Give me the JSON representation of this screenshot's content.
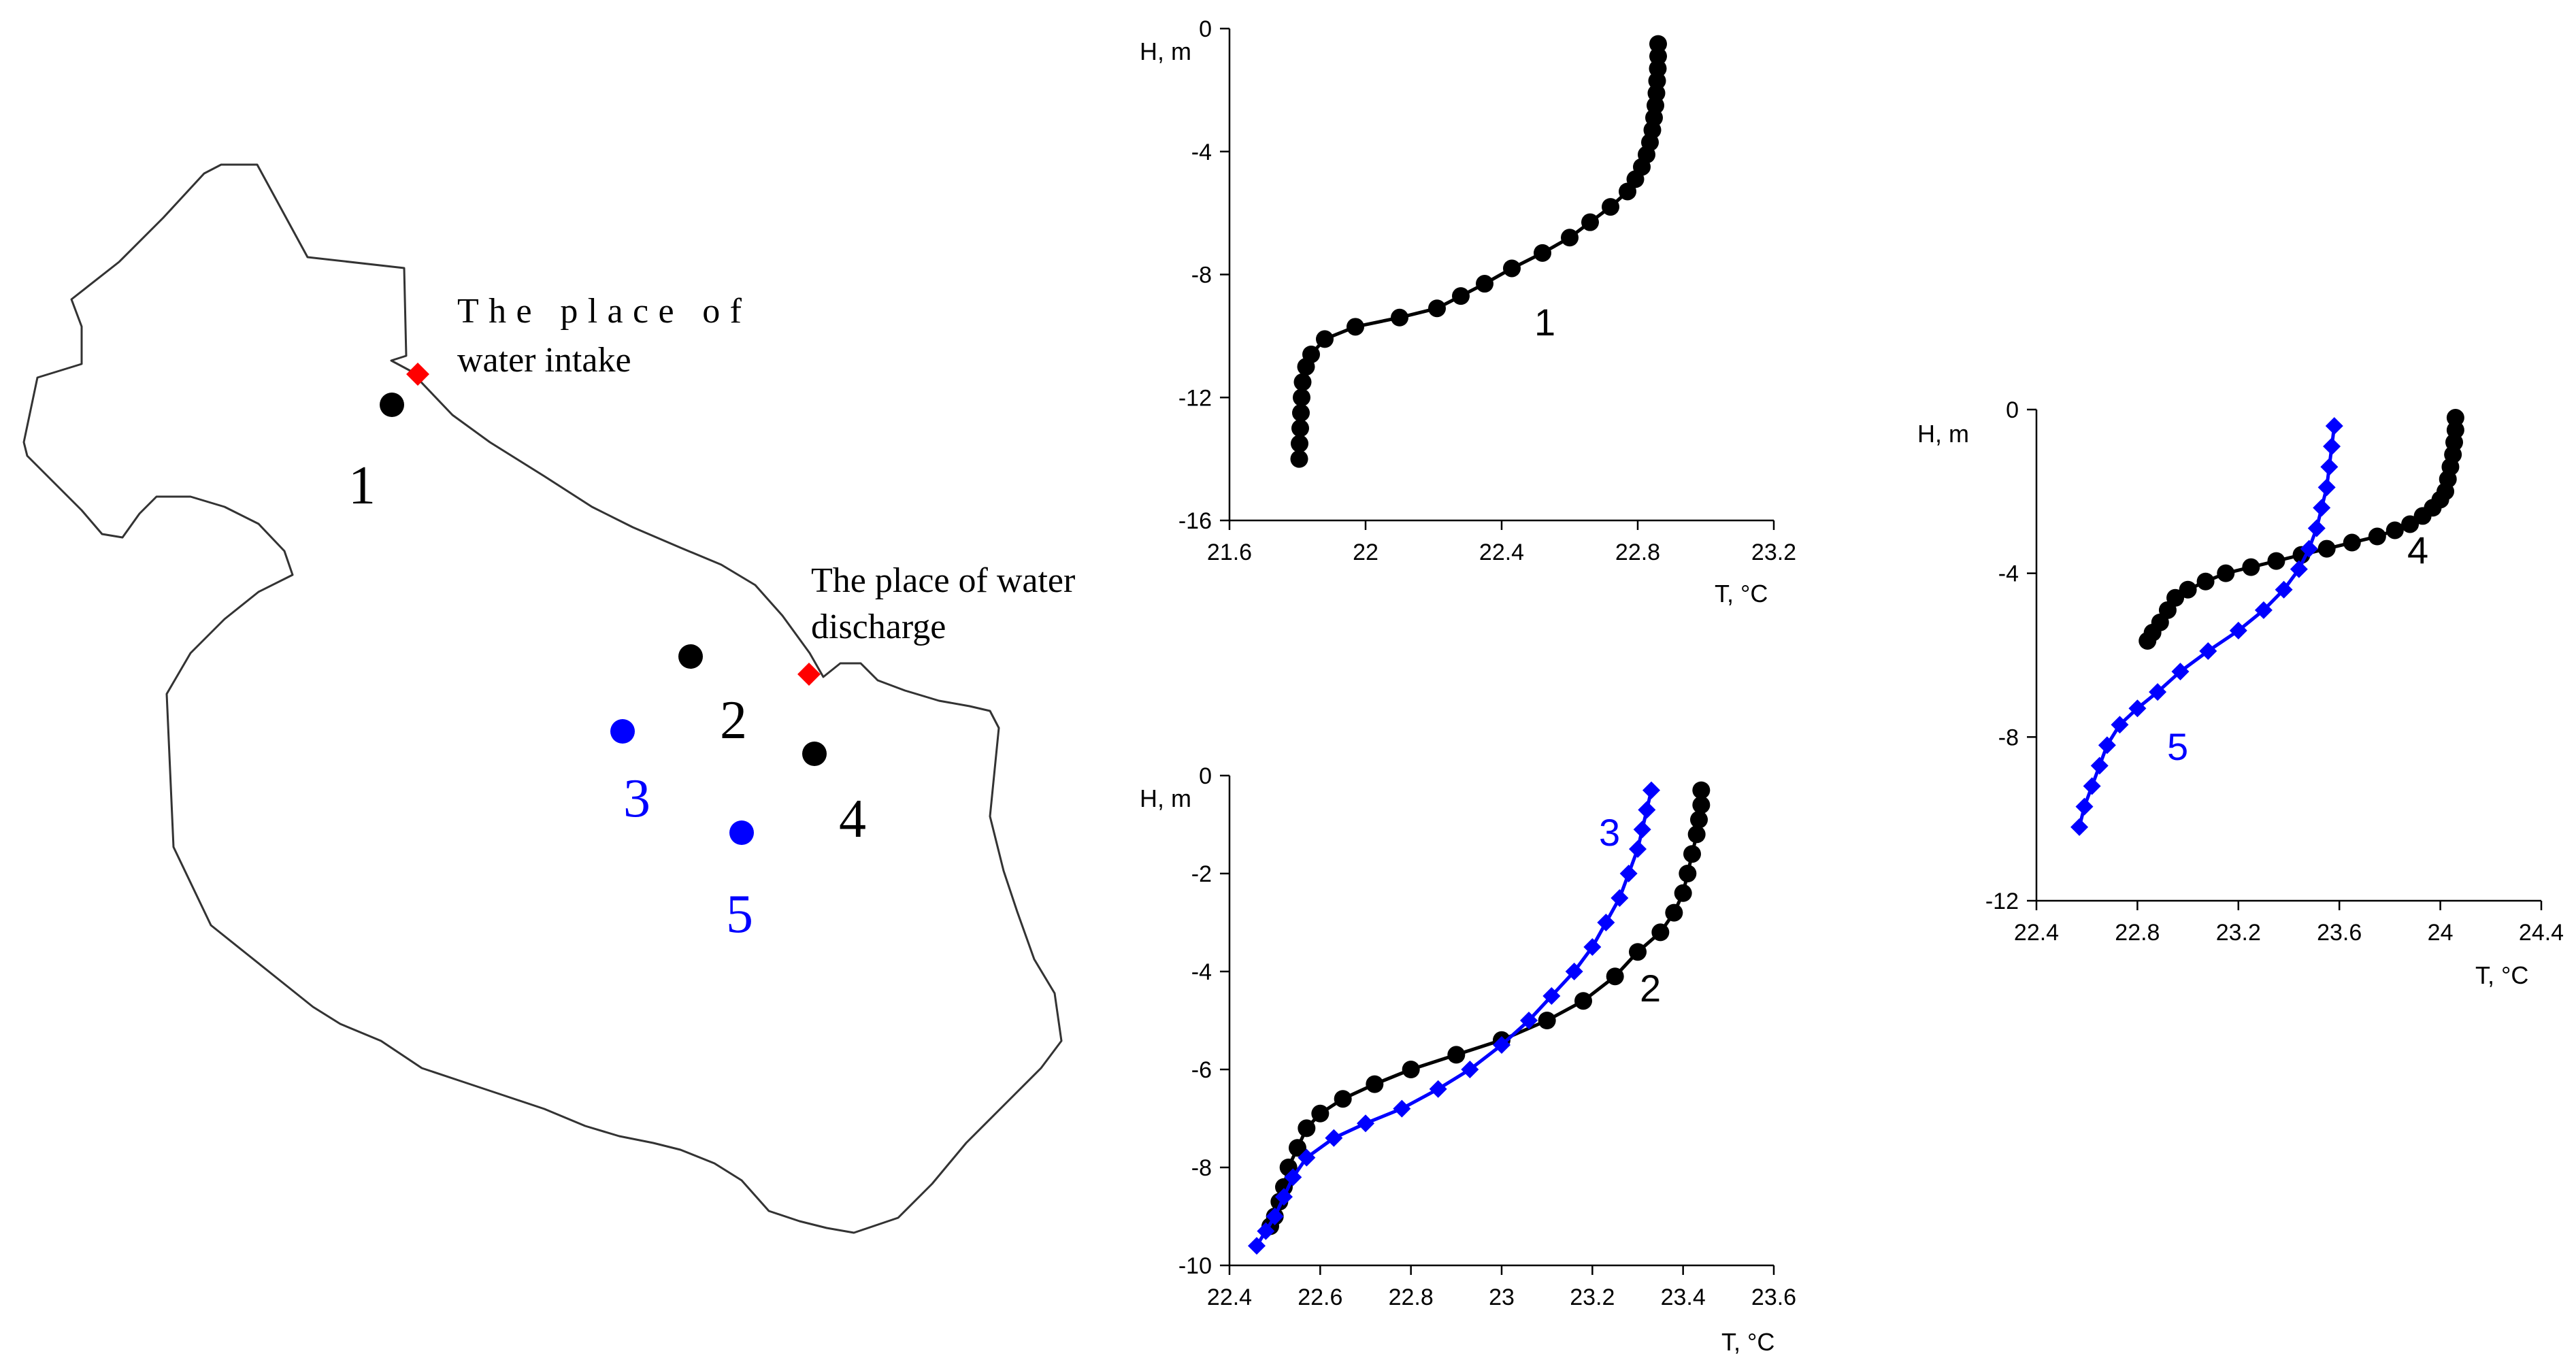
{
  "map": {
    "annotations": {
      "intake": [
        "The place of",
        "water intake"
      ],
      "discharge": [
        "The place of water",
        "discharge"
      ]
    },
    "stations": [
      {
        "id": "1",
        "color": "#000000"
      },
      {
        "id": "2",
        "color": "#000000"
      },
      {
        "id": "3",
        "color": "#0000ff"
      },
      {
        "id": "4",
        "color": "#000000"
      },
      {
        "id": "5",
        "color": "#0000ff"
      }
    ],
    "marker_color": "#ff0000"
  },
  "chart_data": [
    {
      "type": "line",
      "xlabel": "T, °C",
      "ylabel": "H, m",
      "xlim": [
        21.6,
        23.2
      ],
      "ylim": [
        -16,
        0
      ],
      "xticks": [
        "21.6",
        "22",
        "22.4",
        "22.8",
        "23.2"
      ],
      "yticks": [
        "-16",
        "-12",
        "-8",
        "-4",
        "0"
      ],
      "series": [
        {
          "name": "1",
          "color": "#000000",
          "marker": "circle",
          "x": [
            22.86,
            22.86,
            22.859,
            22.857,
            22.855,
            22.852,
            22.848,
            22.843,
            22.836,
            22.826,
            22.812,
            22.793,
            22.77,
            22.72,
            22.66,
            22.6,
            22.52,
            22.43,
            22.35,
            22.28,
            22.21,
            22.1,
            21.97,
            21.88,
            21.84,
            21.825,
            21.815,
            21.812,
            21.81,
            21.808,
            21.806,
            21.805
          ],
          "y": [
            -0.5,
            -0.9,
            -1.3,
            -1.7,
            -2.1,
            -2.5,
            -2.9,
            -3.3,
            -3.7,
            -4.1,
            -4.5,
            -4.9,
            -5.3,
            -5.8,
            -6.3,
            -6.8,
            -7.3,
            -7.8,
            -8.3,
            -8.7,
            -9.1,
            -9.4,
            -9.7,
            -10.1,
            -10.6,
            -11.0,
            -11.5,
            -12.0,
            -12.5,
            -13.0,
            -13.5,
            -14.0
          ]
        }
      ]
    },
    {
      "type": "line",
      "xlabel": "T, °C",
      "ylabel": "H, m",
      "xlim": [
        22.4,
        23.6
      ],
      "ylim": [
        -10,
        0
      ],
      "xticks": [
        "22.4",
        "22.6",
        "22.8",
        "23",
        "23.2",
        "23.4",
        "23.6"
      ],
      "yticks": [
        "-10",
        "-8",
        "-6",
        "-4",
        "-2",
        "0"
      ],
      "series": [
        {
          "name": "2",
          "color": "#000000",
          "marker": "circle",
          "x": [
            23.44,
            23.44,
            23.435,
            23.43,
            23.42,
            23.41,
            23.4,
            23.38,
            23.35,
            23.3,
            23.25,
            23.18,
            23.1,
            23.0,
            22.9,
            22.8,
            22.72,
            22.65,
            22.6,
            22.57,
            22.55,
            22.53,
            22.52,
            22.51,
            22.5,
            22.49
          ],
          "y": [
            -0.3,
            -0.6,
            -0.9,
            -1.2,
            -1.6,
            -2.0,
            -2.4,
            -2.8,
            -3.2,
            -3.6,
            -4.1,
            -4.6,
            -5.0,
            -5.4,
            -5.7,
            -6.0,
            -6.3,
            -6.6,
            -6.9,
            -7.2,
            -7.6,
            -8.0,
            -8.4,
            -8.7,
            -9.0,
            -9.2
          ]
        },
        {
          "name": "3",
          "color": "#0000ff",
          "marker": "diamond",
          "x": [
            23.33,
            23.32,
            23.31,
            23.3,
            23.28,
            23.26,
            23.23,
            23.2,
            23.16,
            23.11,
            23.06,
            23.0,
            22.93,
            22.86,
            22.78,
            22.7,
            22.63,
            22.57,
            22.54,
            22.52,
            22.5,
            22.48,
            22.46
          ],
          "y": [
            -0.3,
            -0.7,
            -1.1,
            -1.5,
            -2.0,
            -2.5,
            -3.0,
            -3.5,
            -4.0,
            -4.5,
            -5.0,
            -5.5,
            -6.0,
            -6.4,
            -6.8,
            -7.1,
            -7.4,
            -7.8,
            -8.2,
            -8.6,
            -9.0,
            -9.3,
            -9.6
          ]
        }
      ]
    },
    {
      "type": "line",
      "xlabel": "T, °C",
      "ylabel": "H, m",
      "xlim": [
        22.4,
        24.4
      ],
      "ylim": [
        -12,
        0
      ],
      "xticks": [
        "22.4",
        "22.8",
        "23.2",
        "23.6",
        "24",
        "24.4"
      ],
      "yticks": [
        "-12",
        "-8",
        "-4",
        "0"
      ],
      "series": [
        {
          "name": "4",
          "color": "#000000",
          "marker": "circle",
          "x": [
            24.06,
            24.06,
            24.055,
            24.05,
            24.04,
            24.03,
            24.02,
            24.0,
            23.97,
            23.93,
            23.88,
            23.82,
            23.75,
            23.65,
            23.55,
            23.45,
            23.35,
            23.25,
            23.15,
            23.07,
            23.0,
            22.95,
            22.92,
            22.89,
            22.86,
            22.84
          ],
          "y": [
            -0.2,
            -0.5,
            -0.8,
            -1.1,
            -1.4,
            -1.7,
            -2.0,
            -2.2,
            -2.4,
            -2.6,
            -2.8,
            -2.95,
            -3.1,
            -3.25,
            -3.4,
            -3.55,
            -3.7,
            -3.85,
            -4.0,
            -4.2,
            -4.4,
            -4.6,
            -4.9,
            -5.2,
            -5.45,
            -5.65
          ]
        },
        {
          "name": "5",
          "color": "#0000ff",
          "marker": "diamond",
          "x": [
            23.58,
            23.57,
            23.56,
            23.55,
            23.53,
            23.51,
            23.48,
            23.44,
            23.38,
            23.3,
            23.2,
            23.08,
            22.97,
            22.88,
            22.8,
            22.73,
            22.68,
            22.65,
            22.62,
            22.59,
            22.57
          ],
          "y": [
            -0.4,
            -0.9,
            -1.4,
            -1.9,
            -2.4,
            -2.9,
            -3.4,
            -3.9,
            -4.4,
            -4.9,
            -5.4,
            -5.9,
            -6.4,
            -6.9,
            -7.3,
            -7.7,
            -8.2,
            -8.7,
            -9.2,
            -9.7,
            -10.2
          ]
        }
      ]
    }
  ]
}
